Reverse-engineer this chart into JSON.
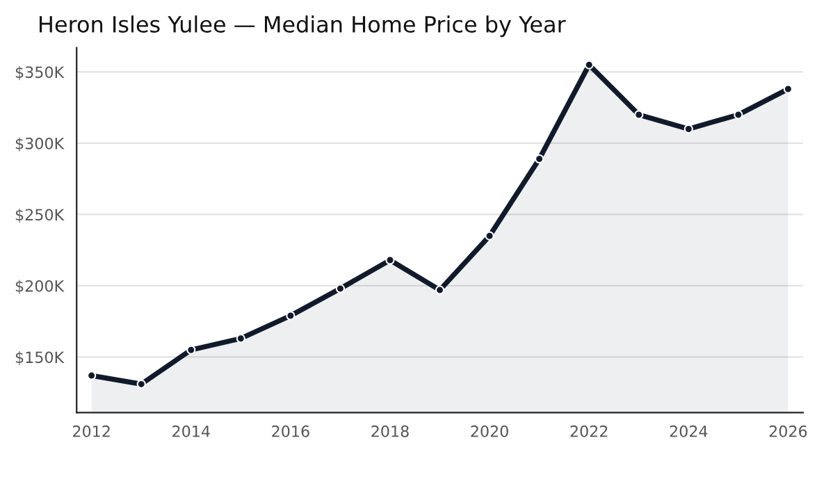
{
  "chart_data": {
    "type": "area",
    "title": "Heron Isles Yulee — Median Home Price by Year",
    "x": [
      2012,
      2013,
      2014,
      2015,
      2016,
      2017,
      2018,
      2019,
      2020,
      2021,
      2022,
      2023,
      2024,
      2025,
      2026
    ],
    "series": [
      {
        "color": "#111a2b",
        "values": [
          137,
          131,
          155,
          163,
          179,
          198,
          218,
          197,
          235,
          289,
          355,
          320,
          310,
          320,
          338
        ]
      }
    ],
    "xlim": [
      2011.7,
      2026.3
    ],
    "xticks": [
      2012,
      2014,
      2016,
      2018,
      2020,
      2022,
      2024,
      2026
    ],
    "ylim": [
      111,
      367
    ],
    "yticks": [
      {
        "value": 150,
        "label": "$150K"
      },
      {
        "value": 200,
        "label": "$200K"
      },
      {
        "value": 250,
        "label": "$250K"
      },
      {
        "value": 300,
        "label": "$300K"
      },
      {
        "value": 350,
        "label": "$350K"
      }
    ],
    "grid": "y",
    "marker": "circle",
    "line_style": "solid",
    "legend": false
  }
}
